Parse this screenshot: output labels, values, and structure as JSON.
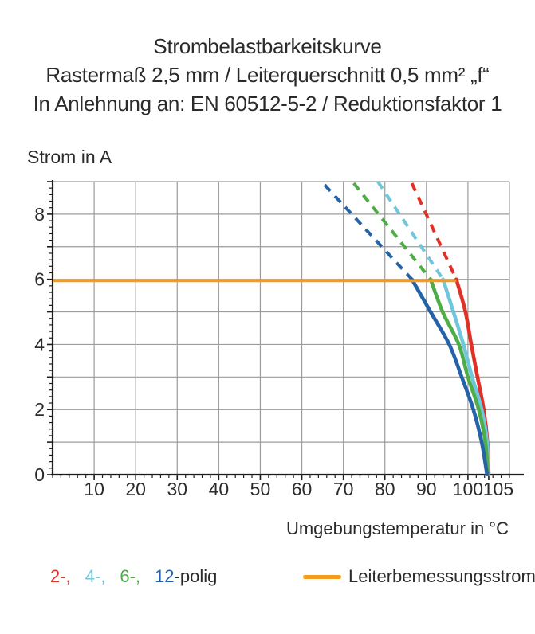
{
  "title": {
    "line1": "Strombelastbarkeitskurve",
    "line2": "Rastermaß 2,5 mm / Leiterquerschnitt 0,5 mm² „f“",
    "line3": "In Anlehnung an: EN 60512-5-2 / Reduktionsfaktor 1"
  },
  "colors": {
    "red": "#E03127",
    "cyan": "#70C6DC",
    "green": "#4FAD48",
    "blue": "#2563A8",
    "orange": "#F59B1F",
    "grid": "#9C9C9C",
    "axis": "#1D1D1B",
    "text": "#2B2B2B"
  },
  "legend": {
    "series_parts": [
      {
        "text": "2-,",
        "color": "#E03127"
      },
      {
        "text": "4-,",
        "color": "#70C6DC"
      },
      {
        "text": "6-,",
        "color": "#4FAD48"
      },
      {
        "text": "12",
        "color": "#2563A8"
      },
      {
        "text": "-polig",
        "color": "#2B2B2B"
      }
    ],
    "reference_label": "Leiterbemessungsstrom",
    "reference_color": "#F59B1F"
  },
  "chart_data": {
    "type": "line",
    "title": "Strombelastbarkeitskurve",
    "subtitle": "Rastermaß 2,5 mm / Leiterquerschnitt 0,5 mm² „f“ / In Anlehnung an: EN 60512-5-2 / Reduktionsfaktor 1",
    "xlabel": "Umgebungstemperatur in °C",
    "ylabel": "Strom in A",
    "xlim": [
      0,
      110
    ],
    "ylim": [
      0,
      9
    ],
    "x_grid_step": 10,
    "y_grid_step": 1,
    "grid": true,
    "x_tick_labels": [
      10,
      20,
      30,
      40,
      50,
      60,
      70,
      80,
      90,
      100,
      105
    ],
    "y_tick_labels": [
      0,
      2,
      4,
      6,
      8
    ],
    "x_minor_tick_step": 2,
    "y_minor_tick_step": 0.2,
    "reference_line": {
      "label": "Leiterbemessungsstrom",
      "current_a": 6,
      "x_start_c": 0,
      "x_end_c": 97.2,
      "color": "#F59B1F"
    },
    "series": [
      {
        "name": "2-polig",
        "color": "#E03127",
        "dashed_points_c_a": [
          [
            86.5,
            8.95
          ],
          [
            97.2,
            6
          ]
        ],
        "solid_points_c_a": [
          [
            97.2,
            6
          ],
          [
            99.4,
            5
          ],
          [
            100.8,
            4
          ],
          [
            102.3,
            3
          ],
          [
            103.8,
            2
          ],
          [
            104.7,
            1
          ],
          [
            105,
            0
          ]
        ]
      },
      {
        "name": "4-polig",
        "color": "#70C6DC",
        "dashed_points_c_a": [
          [
            78.3,
            9.0
          ],
          [
            94,
            6
          ]
        ],
        "solid_points_c_a": [
          [
            94,
            6
          ],
          [
            96.5,
            5
          ],
          [
            98.9,
            4
          ],
          [
            101,
            3
          ],
          [
            103.3,
            2
          ],
          [
            104.6,
            1
          ],
          [
            104.9,
            0
          ]
        ]
      },
      {
        "name": "6-polig",
        "color": "#4FAD48",
        "dashed_points_c_a": [
          [
            72.5,
            8.95
          ],
          [
            91,
            6
          ]
        ],
        "solid_points_c_a": [
          [
            91,
            6
          ],
          [
            93.9,
            5
          ],
          [
            97.8,
            4
          ],
          [
            100,
            3
          ],
          [
            102.6,
            2
          ],
          [
            104.2,
            1
          ],
          [
            104.8,
            0
          ]
        ]
      },
      {
        "name": "12-polig",
        "color": "#2563A8",
        "dashed_points_c_a": [
          [
            65.5,
            8.9
          ],
          [
            86.5,
            6
          ]
        ],
        "solid_points_c_a": [
          [
            86.5,
            6
          ],
          [
            91,
            5
          ],
          [
            95.5,
            4
          ],
          [
            98.5,
            3
          ],
          [
            101.3,
            2
          ],
          [
            103.3,
            1
          ],
          [
            104.6,
            0
          ]
        ]
      }
    ]
  }
}
